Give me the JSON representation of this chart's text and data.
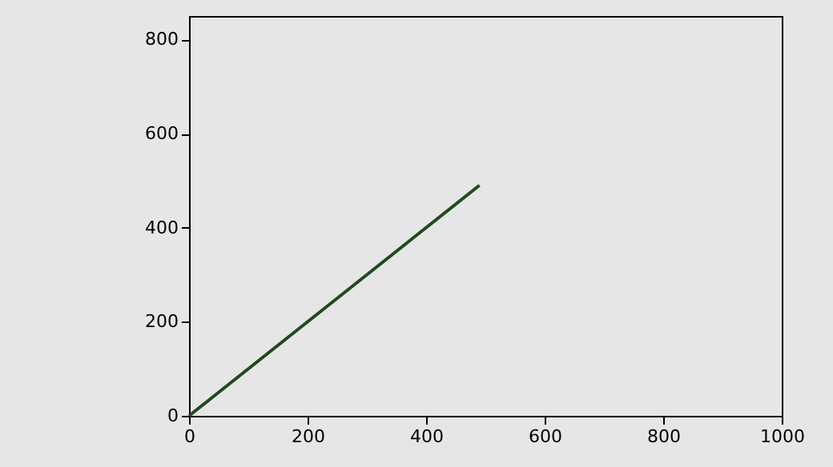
{
  "chart_data": {
    "type": "line",
    "x": [
      0,
      490
    ],
    "values": [
      0,
      490
    ],
    "color": "#1f4a1f",
    "xlim": [
      0,
      1000
    ],
    "ylim": [
      0,
      850
    ],
    "xticks": [
      0,
      200,
      400,
      600,
      800,
      1000
    ],
    "yticks": [
      0,
      200,
      400,
      600,
      800
    ],
    "grid": false
  }
}
